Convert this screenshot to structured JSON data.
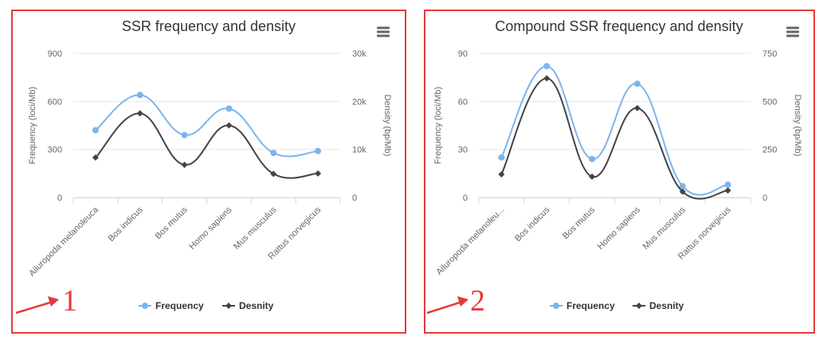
{
  "colors": {
    "frame": "#e63a3a",
    "frequency": "#7cb5ec",
    "density": "#434348",
    "grid": "#e6e6e6",
    "annotation": "#e63a3a"
  },
  "icons": {
    "menu": "hamburger-menu-icon",
    "arrow": "annotation-arrow-icon"
  },
  "panels": [
    {
      "annotation": "1"
    },
    {
      "annotation": "2"
    }
  ],
  "chart_data": [
    {
      "type": "line",
      "title": "SSR frequency and density",
      "categories": [
        "Ailuropoda melanoleuca",
        "Bos indicus",
        "Bos mutus",
        "Homo sapiens",
        "Mus musculus",
        "Rattus norvegicus"
      ],
      "category_labels": [
        "Ailuropoda melanoleuca",
        "Bos indicus",
        "Bos mutus",
        "Homo sapiens",
        "Mus musculus",
        "Rattus norvegicus"
      ],
      "y_left": {
        "label": "Frequency (loci/Mb)",
        "min": 0,
        "max": 900,
        "ticks": [
          0,
          300,
          600,
          900
        ],
        "tick_labels": [
          "0",
          "300",
          "600",
          "900"
        ]
      },
      "y_right": {
        "label": "Density (bp/Mb)",
        "min": 0,
        "max": 30000,
        "ticks": [
          0,
          10000,
          20000,
          30000
        ],
        "tick_labels": [
          "0",
          "10k",
          "20k",
          "30k"
        ]
      },
      "series": [
        {
          "name": "Frequency",
          "axis": "left",
          "marker": "circle",
          "values": [
            420,
            640,
            390,
            555,
            278,
            290
          ]
        },
        {
          "name": "Desnity",
          "axis": "right",
          "marker": "diamond",
          "values": [
            8300,
            17500,
            6800,
            15000,
            4900,
            5000
          ]
        }
      ],
      "grid": true,
      "legend_position": "bottom-center"
    },
    {
      "type": "line",
      "title": "Compound SSR frequency and density",
      "categories": [
        "Ailuropoda melanoleuca",
        "Bos indicus",
        "Bos mutus",
        "Homo sapiens",
        "Mus musculus",
        "Rattus norvegicus"
      ],
      "category_labels": [
        "Ailuropoda melanoleu...",
        "Bos indicus",
        "Bos mutus",
        "Homo sapiens",
        "Mus musculus",
        "Rattus norvegicus"
      ],
      "y_left": {
        "label": "Frequency (loci/Mb)",
        "min": 0,
        "max": 90,
        "ticks": [
          0,
          30,
          60,
          90
        ],
        "tick_labels": [
          "0",
          "30",
          "60",
          "90"
        ]
      },
      "y_right": {
        "label": "Density (bp/Mb)",
        "min": 0,
        "max": 750,
        "ticks": [
          0,
          250,
          500,
          750
        ],
        "tick_labels": [
          "0",
          "250",
          "500",
          "750"
        ]
      },
      "series": [
        {
          "name": "Frequency",
          "axis": "left",
          "marker": "circle",
          "values": [
            25,
            82,
            24,
            71,
            7,
            8
          ]
        },
        {
          "name": "Desnity",
          "axis": "right",
          "marker": "diamond",
          "values": [
            120,
            620,
            108,
            465,
            30,
            36
          ]
        }
      ],
      "grid": true,
      "legend_position": "bottom-center"
    }
  ]
}
